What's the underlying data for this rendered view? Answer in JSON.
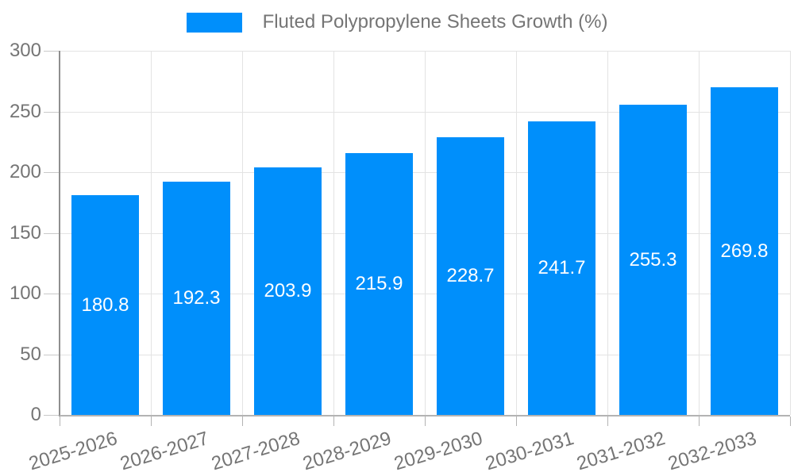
{
  "legend": {
    "label": "Fluted Polypropylene Sheets Growth (%)"
  },
  "chart_data": {
    "type": "bar",
    "title": "Fluted Polypropylene Sheets Growth (%)",
    "categories": [
      "2025-2026",
      "2026-2027",
      "2027-2028",
      "2028-2029",
      "2029-2030",
      "2030-2031",
      "2031-2032",
      "2032-2033"
    ],
    "values": [
      180.8,
      192.3,
      203.9,
      215.9,
      228.7,
      241.7,
      255.3,
      269.8
    ],
    "value_labels": [
      "180.8",
      "192.3",
      "203.9",
      "215.9",
      "228.7",
      "241.7",
      "255.3",
      "269.8"
    ],
    "xlabel": "",
    "ylabel": "",
    "ylim": [
      0,
      300
    ],
    "yticks": [
      0,
      50,
      100,
      150,
      200,
      250,
      300
    ],
    "grid": true,
    "legend_position": "top",
    "colors": {
      "bar": "#008FFB",
      "bar_label": "#ffffff",
      "axis_text": "#757575",
      "grid_line": "#e3e3e3",
      "x_axis_line": "#b3b3b3",
      "y_axis_line": "#8f8f8f"
    }
  }
}
